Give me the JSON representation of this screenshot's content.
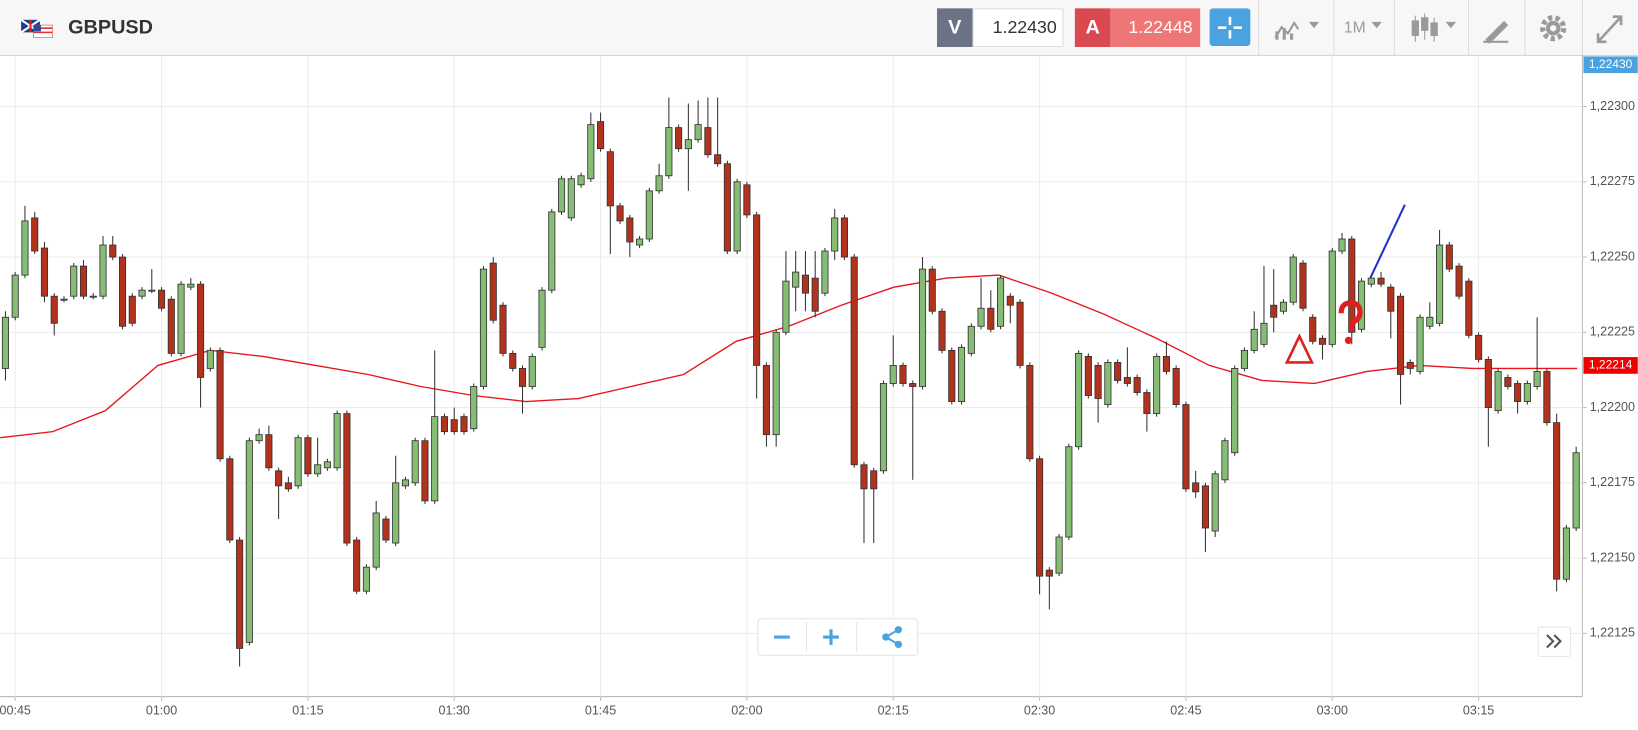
{
  "toolbar": {
    "symbol": "GBPUSD",
    "bid_label": "V",
    "bid": "1.22430",
    "ask_label": "A",
    "ask": "1.22448",
    "timeframe": "1M"
  },
  "chart_data": {
    "type": "candlestick",
    "categories": [
      null,
      "00:45",
      null,
      null,
      null,
      null,
      null,
      null,
      null,
      null,
      null,
      null,
      null,
      null,
      null,
      null,
      "01:00",
      null,
      null,
      null,
      null,
      null,
      null,
      null,
      null,
      null,
      null,
      null,
      null,
      null,
      null,
      "01:15",
      null,
      null,
      null,
      null,
      null,
      null,
      null,
      null,
      null,
      null,
      null,
      null,
      null,
      null,
      "01:30",
      null,
      null,
      null,
      null,
      null,
      null,
      null,
      null,
      null,
      null,
      null,
      null,
      null,
      null,
      "01:45",
      null,
      null,
      null,
      null,
      null,
      null,
      null,
      null,
      null,
      null,
      null,
      null,
      null,
      null,
      "02:00",
      null,
      null,
      null,
      null,
      null,
      null,
      null,
      null,
      null,
      null,
      null,
      null,
      null,
      null,
      "02:15",
      null,
      null,
      null,
      null,
      null,
      null,
      null,
      null,
      null,
      null,
      null,
      null,
      null,
      null,
      "02:30",
      null,
      null,
      null,
      null,
      null,
      null,
      null,
      null,
      null,
      null,
      null,
      null,
      null,
      null,
      "02:45",
      null,
      null,
      null,
      null,
      null,
      null,
      null,
      null,
      null,
      null,
      null,
      null,
      null,
      null,
      "03:00",
      null,
      null,
      null,
      null,
      null,
      null,
      null,
      null,
      null,
      null,
      null,
      null,
      null,
      null,
      "03:15",
      null,
      null,
      null,
      null,
      null,
      null,
      null,
      null,
      null,
      null
    ],
    "candles": [
      [
        1.22213,
        1.22232,
        1.22209,
        1.2223
      ],
      [
        1.2223,
        1.22245,
        1.22229,
        1.22244
      ],
      [
        1.22244,
        1.22267,
        1.22243,
        1.22262
      ],
      [
        1.22263,
        1.22265,
        1.22251,
        1.22252
      ],
      [
        1.22253,
        1.22255,
        1.22235,
        1.22237
      ],
      [
        1.22237,
        1.22238,
        1.22224,
        1.22228
      ],
      [
        1.22236,
        1.22237,
        1.22235,
        1.22236
      ],
      [
        1.22237,
        1.22248,
        1.22236,
        1.22247
      ],
      [
        1.22247,
        1.22249,
        1.22236,
        1.22237
      ],
      [
        1.22237,
        1.22238,
        1.22236,
        1.22237
      ],
      [
        1.22237,
        1.22257,
        1.22236,
        1.22254
      ],
      [
        1.22254,
        1.22257,
        1.22249,
        1.2225
      ],
      [
        1.2225,
        1.22251,
        1.22226,
        1.22227
      ],
      [
        1.22237,
        1.22238,
        1.22227,
        1.22228
      ],
      [
        1.22237,
        1.2224,
        1.22236,
        1.22239
      ],
      [
        1.22239,
        1.22246,
        1.22238,
        1.22239
      ],
      [
        1.22239,
        1.2224,
        1.22232,
        1.22233
      ],
      [
        1.22236,
        1.22237,
        1.22217,
        1.22218
      ],
      [
        1.22218,
        1.22242,
        1.22217,
        1.22241
      ],
      [
        1.2224,
        1.22243,
        1.22239,
        1.22241
      ],
      [
        1.22241,
        1.22242,
        1.222,
        1.2221
      ],
      [
        1.22213,
        1.2222,
        1.22212,
        1.22219
      ],
      [
        1.22219,
        1.2222,
        1.22182,
        1.22183
      ],
      [
        1.22183,
        1.22184,
        1.22155,
        1.22156
      ],
      [
        1.22156,
        1.22157,
        1.22114,
        1.2212
      ],
      [
        1.22122,
        1.2219,
        1.22121,
        1.22189
      ],
      [
        1.22189,
        1.22193,
        1.22188,
        1.22191
      ],
      [
        1.22191,
        1.22194,
        1.22179,
        1.2218
      ],
      [
        1.22179,
        1.2218,
        1.22163,
        1.22174
      ],
      [
        1.22175,
        1.22177,
        1.22172,
        1.22173
      ],
      [
        1.22174,
        1.22191,
        1.22173,
        1.2219
      ],
      [
        1.2219,
        1.22191,
        1.22177,
        1.22178
      ],
      [
        1.22178,
        1.2219,
        1.22177,
        1.22181
      ],
      [
        1.2218,
        1.22183,
        1.22179,
        1.22182
      ],
      [
        1.2218,
        1.22199,
        1.22179,
        1.22198
      ],
      [
        1.22198,
        1.22199,
        1.22154,
        1.22155
      ],
      [
        1.22156,
        1.22157,
        1.22138,
        1.22139
      ],
      [
        1.22139,
        1.22148,
        1.22138,
        1.22147
      ],
      [
        1.22147,
        1.22169,
        1.22146,
        1.22165
      ],
      [
        1.22163,
        1.22164,
        1.22155,
        1.22156
      ],
      [
        1.22155,
        1.22184,
        1.22154,
        1.22175
      ],
      [
        1.22174,
        1.22177,
        1.22173,
        1.22176
      ],
      [
        1.22175,
        1.2219,
        1.22174,
        1.22189
      ],
      [
        1.22189,
        1.2219,
        1.22168,
        1.22169
      ],
      [
        1.22169,
        1.22219,
        1.22168,
        1.22197
      ],
      [
        1.22197,
        1.22198,
        1.22191,
        1.22192
      ],
      [
        1.22196,
        1.222,
        1.22191,
        1.22192
      ],
      [
        1.22197,
        1.22198,
        1.22191,
        1.22192
      ],
      [
        1.22193,
        1.22208,
        1.22192,
        1.22207
      ],
      [
        1.22207,
        1.22247,
        1.22206,
        1.22246
      ],
      [
        1.22248,
        1.2225,
        1.22228,
        1.22229
      ],
      [
        1.22234,
        1.22235,
        1.22217,
        1.22218
      ],
      [
        1.22218,
        1.22219,
        1.22212,
        1.22213
      ],
      [
        1.22213,
        1.22214,
        1.22198,
        1.22207
      ],
      [
        1.22207,
        1.22218,
        1.22206,
        1.22217
      ],
      [
        1.2222,
        1.2224,
        1.22219,
        1.22239
      ],
      [
        1.22239,
        1.22266,
        1.22238,
        1.22265
      ],
      [
        1.22265,
        1.22277,
        1.22264,
        1.22276
      ],
      [
        1.22263,
        1.22277,
        1.22262,
        1.22276
      ],
      [
        1.22274,
        1.22278,
        1.22273,
        1.22277
      ],
      [
        1.22276,
        1.22298,
        1.22275,
        1.22294
      ],
      [
        1.22295,
        1.22298,
        1.22285,
        1.22286
      ],
      [
        1.22285,
        1.22286,
        1.22251,
        1.22267
      ],
      [
        1.22267,
        1.22268,
        1.22261,
        1.22262
      ],
      [
        1.22263,
        1.22264,
        1.2225,
        1.22255
      ],
      [
        1.22254,
        1.22257,
        1.22253,
        1.22256
      ],
      [
        1.22256,
        1.22273,
        1.22255,
        1.22272
      ],
      [
        1.22272,
        1.22281,
        1.22271,
        1.22277
      ],
      [
        1.22277,
        1.22303,
        1.22276,
        1.22293
      ],
      [
        1.22293,
        1.22294,
        1.22285,
        1.22286
      ],
      [
        1.22286,
        1.22301,
        1.22272,
        1.22289
      ],
      [
        1.22289,
        1.22302,
        1.22288,
        1.22294
      ],
      [
        1.22293,
        1.22303,
        1.22283,
        1.22284
      ],
      [
        1.22284,
        1.22303,
        1.2228,
        1.22281
      ],
      [
        1.22281,
        1.22282,
        1.22251,
        1.22252
      ],
      [
        1.22252,
        1.22276,
        1.22251,
        1.22275
      ],
      [
        1.22274,
        1.22275,
        1.22263,
        1.22264
      ],
      [
        1.22264,
        1.22265,
        1.22203,
        1.22214
      ],
      [
        1.22214,
        1.22215,
        1.22187,
        1.22191
      ],
      [
        1.22191,
        1.22226,
        1.22187,
        1.22225
      ],
      [
        1.22225,
        1.22252,
        1.22224,
        1.22242
      ],
      [
        1.2224,
        1.22252,
        1.22232,
        1.22245
      ],
      [
        1.22244,
        1.22252,
        1.22232,
        1.22238
      ],
      [
        1.22243,
        1.22252,
        1.2223,
        1.22232
      ],
      [
        1.22238,
        1.22253,
        1.22237,
        1.22252
      ],
      [
        1.22252,
        1.22266,
        1.22249,
        1.22263
      ],
      [
        1.22263,
        1.22264,
        1.22249,
        1.2225
      ],
      [
        1.2225,
        1.22251,
        1.2218,
        1.22181
      ],
      [
        1.22181,
        1.22182,
        1.22155,
        1.22173
      ],
      [
        1.22179,
        1.2218,
        1.22155,
        1.22173
      ],
      [
        1.22179,
        1.22209,
        1.22178,
        1.22208
      ],
      [
        1.22208,
        1.22224,
        1.22207,
        1.22214
      ],
      [
        1.22214,
        1.22215,
        1.22207,
        1.22208
      ],
      [
        1.22208,
        1.22209,
        1.22176,
        1.22207
      ],
      [
        1.22207,
        1.2225,
        1.22206,
        1.22246
      ],
      [
        1.22246,
        1.22247,
        1.22231,
        1.22232
      ],
      [
        1.22232,
        1.22233,
        1.22218,
        1.22219
      ],
      [
        1.22219,
        1.2222,
        1.22201,
        1.22202
      ],
      [
        1.22202,
        1.22221,
        1.22201,
        1.2222
      ],
      [
        1.22218,
        1.22228,
        1.22217,
        1.22227
      ],
      [
        1.22227,
        1.22243,
        1.22226,
        1.22233
      ],
      [
        1.22233,
        1.22239,
        1.22225,
        1.22226
      ],
      [
        1.22227,
        1.22244,
        1.22226,
        1.22243
      ],
      [
        1.22237,
        1.22238,
        1.22228,
        1.22234
      ],
      [
        1.22235,
        1.22236,
        1.22213,
        1.22214
      ],
      [
        1.22214,
        1.22215,
        1.22182,
        1.22183
      ],
      [
        1.22183,
        1.22184,
        1.22138,
        1.22144
      ],
      [
        1.22146,
        1.22147,
        1.22133,
        1.22144
      ],
      [
        1.22145,
        1.22158,
        1.22144,
        1.22157
      ],
      [
        1.22157,
        1.22188,
        1.22156,
        1.22187
      ],
      [
        1.22187,
        1.22219,
        1.22186,
        1.22218
      ],
      [
        1.22217,
        1.22218,
        1.22203,
        1.22204
      ],
      [
        1.22214,
        1.22215,
        1.22195,
        1.22203
      ],
      [
        1.22201,
        1.22216,
        1.222,
        1.22215
      ],
      [
        1.22215,
        1.22216,
        1.22208,
        1.22209
      ],
      [
        1.2221,
        1.2222,
        1.22207,
        1.22208
      ],
      [
        1.2221,
        1.22211,
        1.22204,
        1.22205
      ],
      [
        1.22205,
        1.22206,
        1.22192,
        1.22198
      ],
      [
        1.22198,
        1.22218,
        1.22197,
        1.22217
      ],
      [
        1.22217,
        1.22222,
        1.22211,
        1.22212
      ],
      [
        1.22213,
        1.22214,
        1.222,
        1.22201
      ],
      [
        1.22201,
        1.22202,
        1.22172,
        1.22173
      ],
      [
        1.22175,
        1.22179,
        1.2217,
        1.22172
      ],
      [
        1.22174,
        1.22175,
        1.22152,
        1.2216
      ],
      [
        1.22159,
        1.22179,
        1.22157,
        1.22178
      ],
      [
        1.22176,
        1.2219,
        1.22175,
        1.22189
      ],
      [
        1.22185,
        1.22214,
        1.22184,
        1.22213
      ],
      [
        1.22213,
        1.2222,
        1.22212,
        1.22219
      ],
      [
        1.22219,
        1.22232,
        1.22218,
        1.22226
      ],
      [
        1.22221,
        1.22247,
        1.2222,
        1.22228
      ],
      [
        1.22234,
        1.22246,
        1.22225,
        1.2223
      ],
      [
        1.22232,
        1.22236,
        1.22231,
        1.22235
      ],
      [
        1.22235,
        1.22251,
        1.22234,
        1.2225
      ],
      [
        1.22248,
        1.22249,
        1.22232,
        1.22233
      ],
      [
        1.2223,
        1.22231,
        1.22221,
        1.22222
      ],
      [
        1.22223,
        1.22224,
        1.22216,
        1.22221
      ],
      [
        1.22221,
        1.22253,
        1.2222,
        1.22252
      ],
      [
        1.22252,
        1.22258,
        1.22251,
        1.22256
      ],
      [
        1.22256,
        1.22257,
        1.22221,
        1.22225
      ],
      [
        1.22226,
        1.22243,
        1.22225,
        1.22242
      ],
      [
        1.22241,
        1.22244,
        1.2224,
        1.22243
      ],
      [
        1.22243,
        1.22245,
        1.2224,
        1.22241
      ],
      [
        1.2224,
        1.22241,
        1.22223,
        1.22232
      ],
      [
        1.22237,
        1.22238,
        1.22201,
        1.22211
      ],
      [
        1.22215,
        1.22216,
        1.22211,
        1.22213
      ],
      [
        1.22212,
        1.22231,
        1.22211,
        1.2223
      ],
      [
        1.22227,
        1.22235,
        1.22226,
        1.2223
      ],
      [
        1.22228,
        1.22259,
        1.22227,
        1.22254
      ],
      [
        1.22254,
        1.22255,
        1.22245,
        1.22246
      ],
      [
        1.22247,
        1.22248,
        1.22236,
        1.22237
      ],
      [
        1.22242,
        1.22243,
        1.22223,
        1.22224
      ],
      [
        1.22224,
        1.22225,
        1.22215,
        1.22216
      ],
      [
        1.22216,
        1.22217,
        1.22187,
        1.222
      ],
      [
        1.22199,
        1.22213,
        1.22198,
        1.22212
      ],
      [
        1.2221,
        1.22211,
        1.22206,
        1.22207
      ],
      [
        1.22208,
        1.22209,
        1.22198,
        1.22202
      ],
      [
        1.22202,
        1.22209,
        1.22201,
        1.22208
      ],
      [
        1.22207,
        1.2223,
        1.22206,
        1.22212
      ],
      [
        1.22212,
        1.22213,
        1.22194,
        1.22195
      ],
      [
        1.22195,
        1.22198,
        1.22139,
        1.22143
      ],
      [
        1.22143,
        1.22161,
        1.22142,
        1.2216
      ],
      [
        1.2216,
        1.22187,
        1.22159,
        1.22185
      ]
    ],
    "up_color": "#86bd74",
    "down_color": "#b3321d",
    "moving_average": {
      "color": "#e8141b",
      "values": [
        1.2219,
        1.22192,
        1.22199,
        1.22214,
        1.22219,
        1.22217,
        1.22214,
        1.22211,
        1.22207,
        1.22204,
        1.22202,
        1.22203,
        1.22207,
        1.22211,
        1.22222,
        1.22227,
        1.22234,
        1.2224,
        1.22243,
        1.22244,
        1.22238,
        1.22231,
        1.22223,
        1.22214,
        1.22209,
        1.22208,
        1.22212,
        1.22214,
        1.22213,
        1.22213,
        1.22213
      ]
    },
    "ylim": [
      1.22104,
      1.22317
    ],
    "yticks": [
      {
        "value": 1.223,
        "label": "1,22300"
      },
      {
        "value": 1.22275,
        "label": "1,22275"
      },
      {
        "value": 1.2225,
        "label": "1,22250"
      },
      {
        "value": 1.22225,
        "label": "1,22225"
      },
      {
        "value": 1.222,
        "label": "1,22200"
      },
      {
        "value": 1.22175,
        "label": "1,22175"
      },
      {
        "value": 1.2215,
        "label": "1,22150"
      },
      {
        "value": 1.22125,
        "label": "1,22125"
      }
    ],
    "price_markers": [
      {
        "value": 1.2243,
        "label": "1,22430",
        "color": "#4aa3df"
      },
      {
        "value": 1.22214,
        "label": "1,22214",
        "color": "#ee0000"
      }
    ],
    "grid": true
  }
}
